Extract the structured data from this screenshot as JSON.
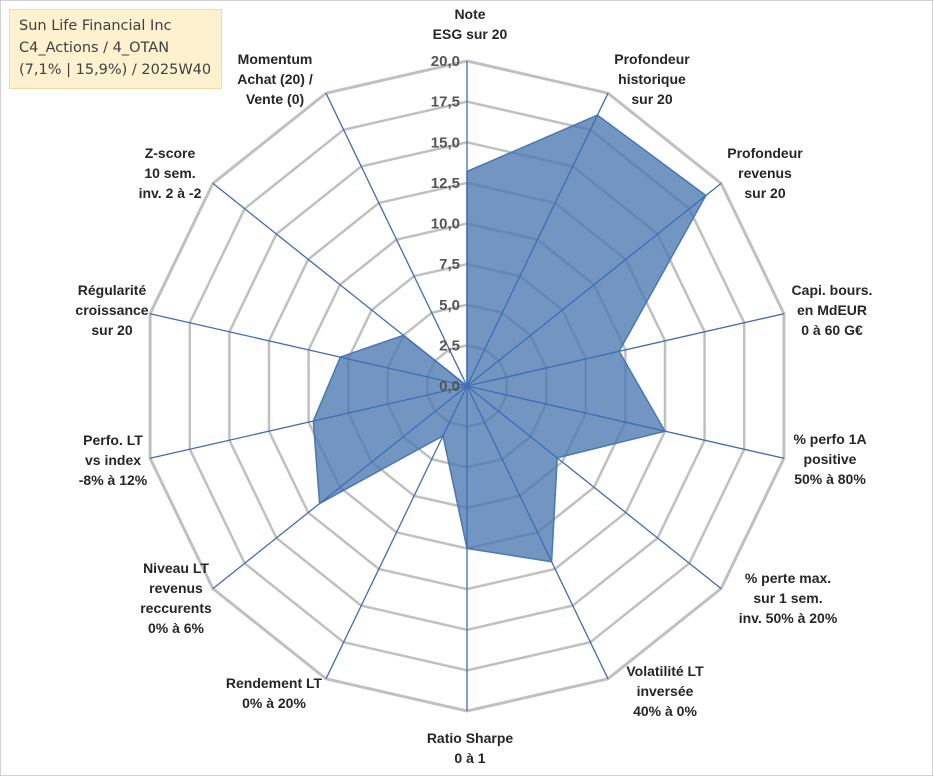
{
  "title_box": {
    "line1": "Sun Life Financial Inc",
    "line2": "C4_Actions / 4_OTAN",
    "line3": "(7,1% | 15,9%) / 2025W40"
  },
  "colors": {
    "fill": "#4a78b0",
    "axis": "#3f6db5",
    "grid": "#c0c0c0",
    "title_bg": "#fdf1cf"
  },
  "chart_data": {
    "type": "radar",
    "range": [
      0,
      20
    ],
    "ticks": [
      "0,0",
      "2,5",
      "5,0",
      "7,5",
      "10,0",
      "12,5",
      "15,0",
      "17,5",
      "20,0"
    ],
    "axes": [
      {
        "label": [
          "Note",
          "ESG sur 20"
        ],
        "value": 13.2
      },
      {
        "label": [
          "Profondeur",
          "historique",
          "sur 20"
        ],
        "value": 18.5
      },
      {
        "label": [
          "Profondeur",
          "revenus",
          "sur 20"
        ],
        "value": 18.8
      },
      {
        "label": [
          "Capi. bours.",
          "en MdEUR",
          "0 à 60 G€"
        ],
        "value": 9.6
      },
      {
        "label": [
          "% perfo 1A",
          "positive",
          "50% à 80%"
        ],
        "value": 12.5
      },
      {
        "label": [
          "% perte max.",
          "sur 1 sem.",
          "inv. 50% à 20%"
        ],
        "value": 7.1
      },
      {
        "label": [
          "Volatilité LT",
          "inversée",
          "40% à 0%"
        ],
        "value": 12.0
      },
      {
        "label": [
          "Ratio Sharpe",
          "0 à 1"
        ],
        "value": 10.0
      },
      {
        "label": [
          "Rendement LT",
          "0% à 20%"
        ],
        "value": 3.4
      },
      {
        "label": [
          "Niveau LT",
          "revenus",
          "reccurents",
          "0% à 6%"
        ],
        "value": 11.6
      },
      {
        "label": [
          "Perfo. LT",
          "vs index",
          "-8% à 12%"
        ],
        "value": 9.7
      },
      {
        "label": [
          "Régularité",
          "croissance",
          "sur 20"
        ],
        "value": 8.0
      },
      {
        "label": [
          "Z-score",
          "10 sem.",
          "inv. 2 à -2"
        ],
        "value": 5.0
      },
      {
        "label": [
          "Momentum",
          "Achat (20) /",
          "Vente (0)"
        ],
        "value": 0.0
      }
    ]
  }
}
